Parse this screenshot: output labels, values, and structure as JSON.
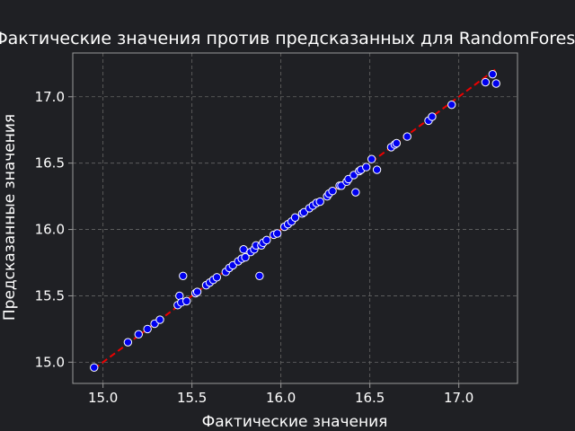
{
  "chart_data": {
    "type": "scatter",
    "title": "Фактические значения против предсказанных для RandomForest",
    "xlabel": "Фактические значения",
    "ylabel": "Предсказанные значения",
    "xlim": [
      14.83,
      17.33
    ],
    "ylim": [
      14.84,
      17.33
    ],
    "xticks": [
      "15.0",
      "15.5",
      "16.0",
      "16.5",
      "17.0"
    ],
    "yticks": [
      "15.0",
      "15.5",
      "16.0",
      "16.5",
      "17.0"
    ],
    "grid": true,
    "colors": {
      "background": "#1f2024",
      "point_fill": "#0000ee",
      "point_edge": "#ffffff",
      "ideal_line": "#ee0000",
      "grid": "#666666",
      "axes": "#9a9a9a",
      "text": "#ffffff"
    },
    "ideal_line": {
      "style": "dashed",
      "from": [
        14.95,
        14.95
      ],
      "to": [
        17.21,
        17.21
      ]
    },
    "series": [
      {
        "points": [
          [
            14.95,
            14.96
          ],
          [
            15.14,
            15.15
          ],
          [
            15.2,
            15.21
          ],
          [
            15.25,
            15.25
          ],
          [
            15.29,
            15.29
          ],
          [
            15.32,
            15.32
          ],
          [
            15.42,
            15.43
          ],
          [
            15.43,
            15.5
          ],
          [
            15.44,
            15.45
          ],
          [
            15.45,
            15.65
          ],
          [
            15.47,
            15.46
          ],
          [
            15.52,
            15.52
          ],
          [
            15.53,
            15.53
          ],
          [
            15.58,
            15.58
          ],
          [
            15.6,
            15.6
          ],
          [
            15.62,
            15.62
          ],
          [
            15.64,
            15.64
          ],
          [
            15.69,
            15.68
          ],
          [
            15.71,
            15.71
          ],
          [
            15.73,
            15.73
          ],
          [
            15.76,
            15.76
          ],
          [
            15.78,
            15.78
          ],
          [
            15.79,
            15.85
          ],
          [
            15.8,
            15.79
          ],
          [
            15.83,
            15.83
          ],
          [
            15.85,
            15.85
          ],
          [
            15.86,
            15.88
          ],
          [
            15.88,
            15.65
          ],
          [
            15.89,
            15.88
          ],
          [
            15.9,
            15.9
          ],
          [
            15.92,
            15.92
          ],
          [
            15.96,
            15.96
          ],
          [
            15.98,
            15.97
          ],
          [
            16.02,
            16.02
          ],
          [
            16.04,
            16.04
          ],
          [
            16.06,
            16.06
          ],
          [
            16.08,
            16.09
          ],
          [
            16.12,
            16.12
          ],
          [
            16.13,
            16.13
          ],
          [
            16.16,
            16.16
          ],
          [
            16.18,
            16.18
          ],
          [
            16.2,
            16.2
          ],
          [
            16.22,
            16.21
          ],
          [
            16.26,
            16.25
          ],
          [
            16.27,
            16.27
          ],
          [
            16.29,
            16.29
          ],
          [
            16.33,
            16.33
          ],
          [
            16.34,
            16.33
          ],
          [
            16.37,
            16.36
          ],
          [
            16.38,
            16.38
          ],
          [
            16.41,
            16.41
          ],
          [
            16.42,
            16.28
          ],
          [
            16.44,
            16.44
          ],
          [
            16.45,
            16.45
          ],
          [
            16.48,
            16.47
          ],
          [
            16.51,
            16.53
          ],
          [
            16.54,
            16.45
          ],
          [
            16.62,
            16.62
          ],
          [
            16.64,
            16.64
          ],
          [
            16.65,
            16.65
          ],
          [
            16.71,
            16.7
          ],
          [
            16.83,
            16.82
          ],
          [
            16.85,
            16.85
          ],
          [
            16.96,
            16.94
          ],
          [
            17.15,
            17.11
          ],
          [
            17.19,
            17.17
          ],
          [
            17.21,
            17.1
          ]
        ]
      }
    ]
  }
}
